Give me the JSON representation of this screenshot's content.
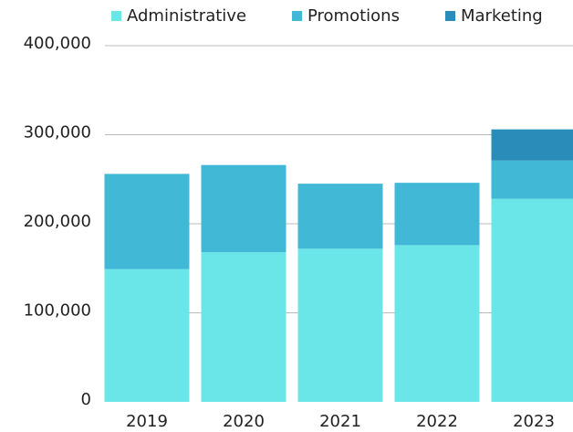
{
  "chart_data": {
    "type": "stacked_bar",
    "categories": [
      "2019",
      "2020",
      "2021",
      "2022",
      "2023"
    ],
    "series": [
      {
        "name": "Administrative",
        "color": "#6ae5e8",
        "values": [
          149000,
          168000,
          172000,
          176000,
          228000
        ]
      },
      {
        "name": "Promotions",
        "color": "#40b8d6",
        "values": [
          107000,
          98000,
          73000,
          70000,
          43000
        ]
      },
      {
        "name": "Marketing",
        "color": "#2a8cb8",
        "values": [
          0,
          0,
          0,
          0,
          35000
        ]
      }
    ],
    "ylim": [
      0,
      400000
    ],
    "yticks": [
      0,
      {
        "value": 100000,
        "label": "100,000"
      },
      {
        "value": 200000,
        "label": "200,000"
      },
      {
        "value": 300000,
        "label": "300,000"
      },
      {
        "value": 400000,
        "label": "400,000"
      }
    ],
    "grid": true,
    "legend": "top"
  }
}
